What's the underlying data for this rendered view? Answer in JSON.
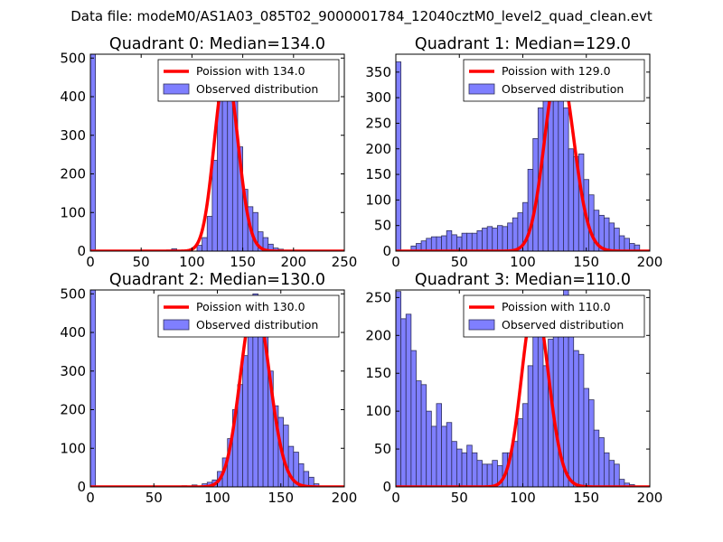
{
  "figure": {
    "suptitle": "Data file: modeM0/AS1A03_085T02_9000001784_12040cztM0_level2_quad_clean.evt",
    "hist_color": "#7f7fff",
    "hist_edge": "#30305a",
    "poisson_color": "#ff0000"
  },
  "chart_data": [
    {
      "type": "bar+line",
      "title": "Quadrant 0: Median=134.0",
      "xlim": [
        0,
        250
      ],
      "ylim": [
        0,
        510
      ],
      "xticks": [
        0,
        50,
        100,
        150,
        200,
        250
      ],
      "yticks": [
        0,
        100,
        200,
        300,
        400,
        500
      ],
      "bin_width": 5,
      "hist": {
        "name": "Observed distribution",
        "bin_starts": [
          0,
          75,
          80,
          95,
          105,
          110,
          115,
          120,
          125,
          130,
          135,
          140,
          145,
          150,
          155,
          160,
          165,
          170,
          175,
          180,
          185,
          190
        ],
        "values": [
          510,
          3,
          6,
          2,
          15,
          35,
          90,
          235,
          430,
          470,
          455,
          395,
          270,
          160,
          115,
          100,
          50,
          35,
          18,
          8,
          5,
          2
        ]
      },
      "poisson": {
        "name": "Poission with 134.0",
        "lambda": 134.0,
        "peak": 470
      }
    },
    {
      "type": "bar+line",
      "title": "Quadrant 1: Median=129.0",
      "xlim": [
        0,
        200
      ],
      "ylim": [
        0,
        385
      ],
      "xticks": [
        0,
        50,
        100,
        150,
        200
      ],
      "yticks": [
        0,
        50,
        100,
        150,
        200,
        250,
        300,
        350
      ],
      "bin_width": 4,
      "hist": {
        "name": "Observed distribution",
        "bin_starts": [
          0,
          12,
          16,
          20,
          24,
          28,
          32,
          36,
          40,
          44,
          48,
          52,
          56,
          60,
          64,
          68,
          72,
          76,
          80,
          84,
          88,
          92,
          96,
          100,
          104,
          108,
          112,
          116,
          120,
          124,
          128,
          132,
          136,
          140,
          144,
          148,
          152,
          156,
          160,
          164,
          168,
          172,
          176,
          180,
          184,
          188
        ],
        "values": [
          370,
          10,
          15,
          20,
          25,
          28,
          28,
          30,
          40,
          32,
          28,
          35,
          35,
          35,
          40,
          45,
          48,
          45,
          50,
          48,
          55,
          65,
          75,
          95,
          160,
          220,
          280,
          340,
          360,
          345,
          325,
          280,
          200,
          185,
          190,
          140,
          110,
          80,
          70,
          65,
          55,
          45,
          30,
          25,
          15,
          12
        ]
      },
      "poisson": {
        "name": "Poission with 129.0",
        "lambda": 129.0,
        "peak": 365
      }
    },
    {
      "type": "bar+line",
      "title": "Quadrant 2: Median=130.0",
      "xlim": [
        0,
        200
      ],
      "ylim": [
        0,
        510
      ],
      "xticks": [
        0,
        50,
        100,
        150,
        200
      ],
      "yticks": [
        0,
        100,
        200,
        300,
        400,
        500
      ],
      "bin_width": 4,
      "hist": {
        "name": "Observed distribution",
        "bin_starts": [
          0,
          72,
          80,
          88,
          92,
          96,
          100,
          104,
          108,
          112,
          116,
          120,
          124,
          128,
          132,
          136,
          140,
          144,
          148,
          152,
          156,
          160,
          164,
          168,
          172,
          176
        ],
        "values": [
          510,
          3,
          5,
          8,
          12,
          18,
          40,
          75,
          125,
          200,
          265,
          340,
          420,
          500,
          470,
          400,
          300,
          210,
          180,
          160,
          105,
          90,
          60,
          40,
          25,
          8
        ]
      },
      "poisson": {
        "name": "Poission with 130.0",
        "lambda": 130.0,
        "peak": 480
      }
    },
    {
      "type": "bar+line",
      "title": "Quadrant 3: Median=110.0",
      "xlim": [
        0,
        200
      ],
      "ylim": [
        0,
        260
      ],
      "xticks": [
        0,
        50,
        100,
        150,
        200
      ],
      "yticks": [
        0,
        50,
        100,
        150,
        200,
        250
      ],
      "bin_width": 4,
      "hist": {
        "name": "Observed distribution",
        "bin_starts": [
          0,
          4,
          8,
          12,
          16,
          20,
          24,
          28,
          32,
          36,
          40,
          44,
          48,
          52,
          56,
          60,
          64,
          68,
          72,
          76,
          80,
          84,
          88,
          92,
          96,
          100,
          104,
          108,
          112,
          116,
          120,
          124,
          128,
          132,
          136,
          140,
          144,
          148,
          152,
          156,
          160,
          164,
          168,
          172,
          176,
          180,
          184
        ],
        "values": [
          258,
          222,
          228,
          180,
          140,
          135,
          100,
          80,
          110,
          80,
          85,
          60,
          50,
          45,
          55,
          45,
          35,
          30,
          30,
          35,
          28,
          45,
          45,
          60,
          90,
          110,
          160,
          205,
          230,
          160,
          195,
          245,
          245,
          260,
          210,
          180,
          175,
          130,
          115,
          75,
          65,
          45,
          35,
          30,
          10,
          5,
          3
        ]
      },
      "poisson": {
        "name": "Poission with 110.0",
        "lambda": 110.0,
        "peak": 245
      }
    }
  ]
}
